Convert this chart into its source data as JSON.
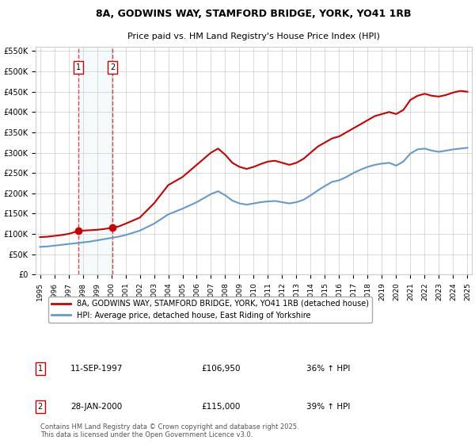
{
  "title_line1": "8A, GODWINS WAY, STAMFORD BRIDGE, YORK, YO41 1RB",
  "title_line2": "Price paid vs. HM Land Registry's House Price Index (HPI)",
  "ylabel": "",
  "background_color": "#ffffff",
  "plot_bg_color": "#ffffff",
  "grid_color": "#cccccc",
  "red_line_color": "#cc0000",
  "blue_line_color": "#6699cc",
  "purchase1_date": 1997.7,
  "purchase1_price": 106950,
  "purchase1_label": "1",
  "purchase2_date": 2000.08,
  "purchase2_price": 115000,
  "purchase2_label": "2",
  "legend_entry1": "8A, GODWINS WAY, STAMFORD BRIDGE, YORK, YO41 1RB (detached house)",
  "legend_entry2": "HPI: Average price, detached house, East Riding of Yorkshire",
  "table_row1": [
    "1",
    "11-SEP-1997",
    "£106,950",
    "36% ↑ HPI"
  ],
  "table_row2": [
    "2",
    "28-JAN-2000",
    "£115,000",
    "39% ↑ HPI"
  ],
  "footnote": "Contains HM Land Registry data © Crown copyright and database right 2025.\nThis data is licensed under the Open Government Licence v3.0.",
  "ylim_max": 560000,
  "yticks": [
    0,
    50000,
    100000,
    150000,
    200000,
    250000,
    300000,
    350000,
    400000,
    450000,
    500000,
    550000
  ],
  "ytick_labels": [
    "£0",
    "£50K",
    "£100K",
    "£150K",
    "£200K",
    "£250K",
    "£300K",
    "£350K",
    "£400K",
    "£450K",
    "£500K",
    "£550K"
  ],
  "xticks": [
    1995,
    1996,
    1997,
    1998,
    1999,
    2000,
    2001,
    2002,
    2003,
    2004,
    2005,
    2006,
    2007,
    2008,
    2009,
    2010,
    2011,
    2012,
    2013,
    2014,
    2015,
    2016,
    2017,
    2018,
    2019,
    2020,
    2021,
    2022,
    2023,
    2024,
    2025
  ],
  "red_x": [
    1995.0,
    1995.5,
    1996.0,
    1996.5,
    1997.0,
    1997.7,
    1998.0,
    1998.5,
    1999.0,
    1999.5,
    2000.08,
    2000.5,
    2001.0,
    2002.0,
    2003.0,
    2004.0,
    2005.0,
    2006.0,
    2007.0,
    2007.5,
    2008.0,
    2008.5,
    2009.0,
    2009.5,
    2010.0,
    2010.5,
    2011.0,
    2011.5,
    2012.0,
    2012.5,
    2013.0,
    2013.5,
    2014.0,
    2014.5,
    2015.0,
    2015.5,
    2016.0,
    2016.5,
    2017.0,
    2017.5,
    2018.0,
    2018.5,
    2019.0,
    2019.5,
    2020.0,
    2020.5,
    2021.0,
    2021.5,
    2022.0,
    2022.5,
    2023.0,
    2023.5,
    2024.0,
    2024.5,
    2025.0
  ],
  "red_y": [
    92000,
    93000,
    95000,
    97000,
    100000,
    106950,
    108000,
    109000,
    110000,
    112000,
    115000,
    118000,
    125000,
    140000,
    175000,
    220000,
    240000,
    270000,
    300000,
    310000,
    295000,
    275000,
    265000,
    260000,
    265000,
    272000,
    278000,
    280000,
    275000,
    270000,
    275000,
    285000,
    300000,
    315000,
    325000,
    335000,
    340000,
    350000,
    360000,
    370000,
    380000,
    390000,
    395000,
    400000,
    395000,
    405000,
    430000,
    440000,
    445000,
    440000,
    438000,
    442000,
    448000,
    452000,
    450000
  ],
  "blue_x": [
    1995.0,
    1995.5,
    1996.0,
    1996.5,
    1997.0,
    1997.5,
    1998.0,
    1998.5,
    1999.0,
    1999.5,
    2000.0,
    2000.5,
    2001.0,
    2002.0,
    2003.0,
    2004.0,
    2005.0,
    2006.0,
    2007.0,
    2007.5,
    2008.0,
    2008.5,
    2009.0,
    2009.5,
    2010.0,
    2010.5,
    2011.0,
    2011.5,
    2012.0,
    2012.5,
    2013.0,
    2013.5,
    2014.0,
    2014.5,
    2015.0,
    2015.5,
    2016.0,
    2016.5,
    2017.0,
    2017.5,
    2018.0,
    2018.5,
    2019.0,
    2019.5,
    2020.0,
    2020.5,
    2021.0,
    2021.5,
    2022.0,
    2022.5,
    2023.0,
    2023.5,
    2024.0,
    2024.5,
    2025.0
  ],
  "blue_y": [
    68000,
    69000,
    71000,
    73000,
    75000,
    77000,
    79000,
    81000,
    84000,
    87000,
    90000,
    93000,
    97000,
    108000,
    125000,
    148000,
    162000,
    178000,
    198000,
    205000,
    195000,
    182000,
    175000,
    172000,
    175000,
    178000,
    180000,
    181000,
    178000,
    175000,
    178000,
    184000,
    195000,
    207000,
    218000,
    228000,
    232000,
    240000,
    250000,
    258000,
    265000,
    270000,
    273000,
    275000,
    268000,
    278000,
    298000,
    308000,
    310000,
    305000,
    302000,
    305000,
    308000,
    310000,
    312000
  ]
}
